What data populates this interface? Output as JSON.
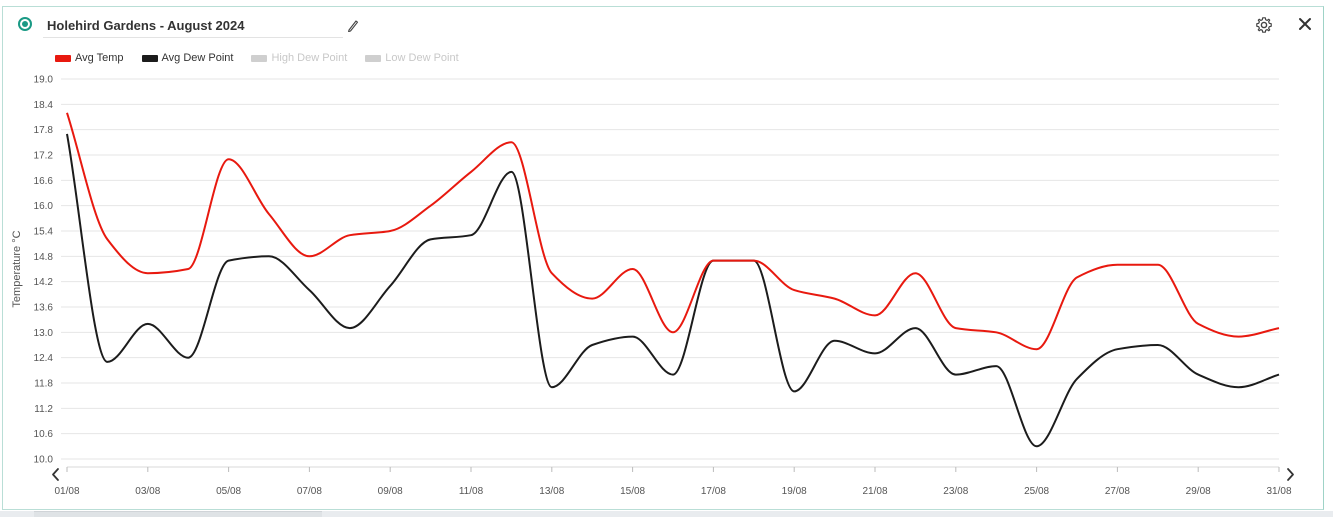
{
  "widget": {
    "title": "Holehird Gardens - August 2024",
    "status_color": "#1a9a85",
    "icons": {
      "status": "status-dot-icon",
      "edit": "pencil-icon",
      "settings": "gear-icon",
      "close": "close-icon",
      "prev": "chevron-left-icon",
      "next": "chevron-right-icon"
    }
  },
  "legend": [
    {
      "label": "Avg Temp",
      "color": "#e8190f",
      "active": true
    },
    {
      "label": "Avg Dew Point",
      "color": "#1c1c1c",
      "active": true
    },
    {
      "label": "High Dew Point",
      "color": "#cfcfcf",
      "active": false
    },
    {
      "label": "Low Dew Point",
      "color": "#cfcfcf",
      "active": false
    }
  ],
  "chart_data": {
    "type": "line",
    "title": "",
    "xlabel": "",
    "ylabel": "Temperature °C",
    "ylim": [
      10.0,
      19.0
    ],
    "yticks": [
      "19.0",
      "18.4",
      "17.8",
      "17.2",
      "16.6",
      "16.0",
      "15.4",
      "14.8",
      "14.2",
      "13.6",
      "13.0",
      "12.4",
      "11.8",
      "11.2",
      "10.6",
      "10.0"
    ],
    "xtick_labels": [
      "01/08",
      "03/08",
      "05/08",
      "07/08",
      "09/08",
      "11/08",
      "13/08",
      "15/08",
      "17/08",
      "19/08",
      "21/08",
      "23/08",
      "25/08",
      "27/08",
      "29/08",
      "31/08"
    ],
    "grid": true,
    "legend_position": "top-left",
    "x": [
      "01/08",
      "02/08",
      "03/08",
      "04/08",
      "05/08",
      "06/08",
      "07/08",
      "08/08",
      "09/08",
      "10/08",
      "11/08",
      "12/08",
      "13/08",
      "14/08",
      "15/08",
      "16/08",
      "17/08",
      "18/08",
      "19/08",
      "20/08",
      "21/08",
      "22/08",
      "23/08",
      "24/08",
      "25/08",
      "26/08",
      "27/08",
      "28/08",
      "29/08",
      "30/08",
      "31/08"
    ],
    "series": [
      {
        "name": "Avg Temp",
        "color": "#e8190f",
        "values": [
          18.2,
          15.2,
          14.4,
          14.5,
          17.1,
          15.8,
          14.8,
          15.3,
          15.4,
          16.0,
          16.8,
          17.5,
          14.4,
          13.8,
          14.5,
          13.0,
          14.7,
          14.7,
          14.0,
          13.8,
          13.4,
          14.4,
          13.1,
          13.0,
          12.6,
          14.3,
          14.6,
          14.6,
          13.2,
          12.9,
          13.1
        ]
      },
      {
        "name": "Avg Dew Point",
        "color": "#1c1c1c",
        "values": [
          17.7,
          12.3,
          13.2,
          12.4,
          14.7,
          14.8,
          14.0,
          13.1,
          14.1,
          15.2,
          15.3,
          16.8,
          11.7,
          12.7,
          12.9,
          12.0,
          14.7,
          14.7,
          11.6,
          12.8,
          12.5,
          13.1,
          12.0,
          12.2,
          10.3,
          11.9,
          12.6,
          12.7,
          12.0,
          11.7,
          12.0
        ]
      }
    ]
  }
}
